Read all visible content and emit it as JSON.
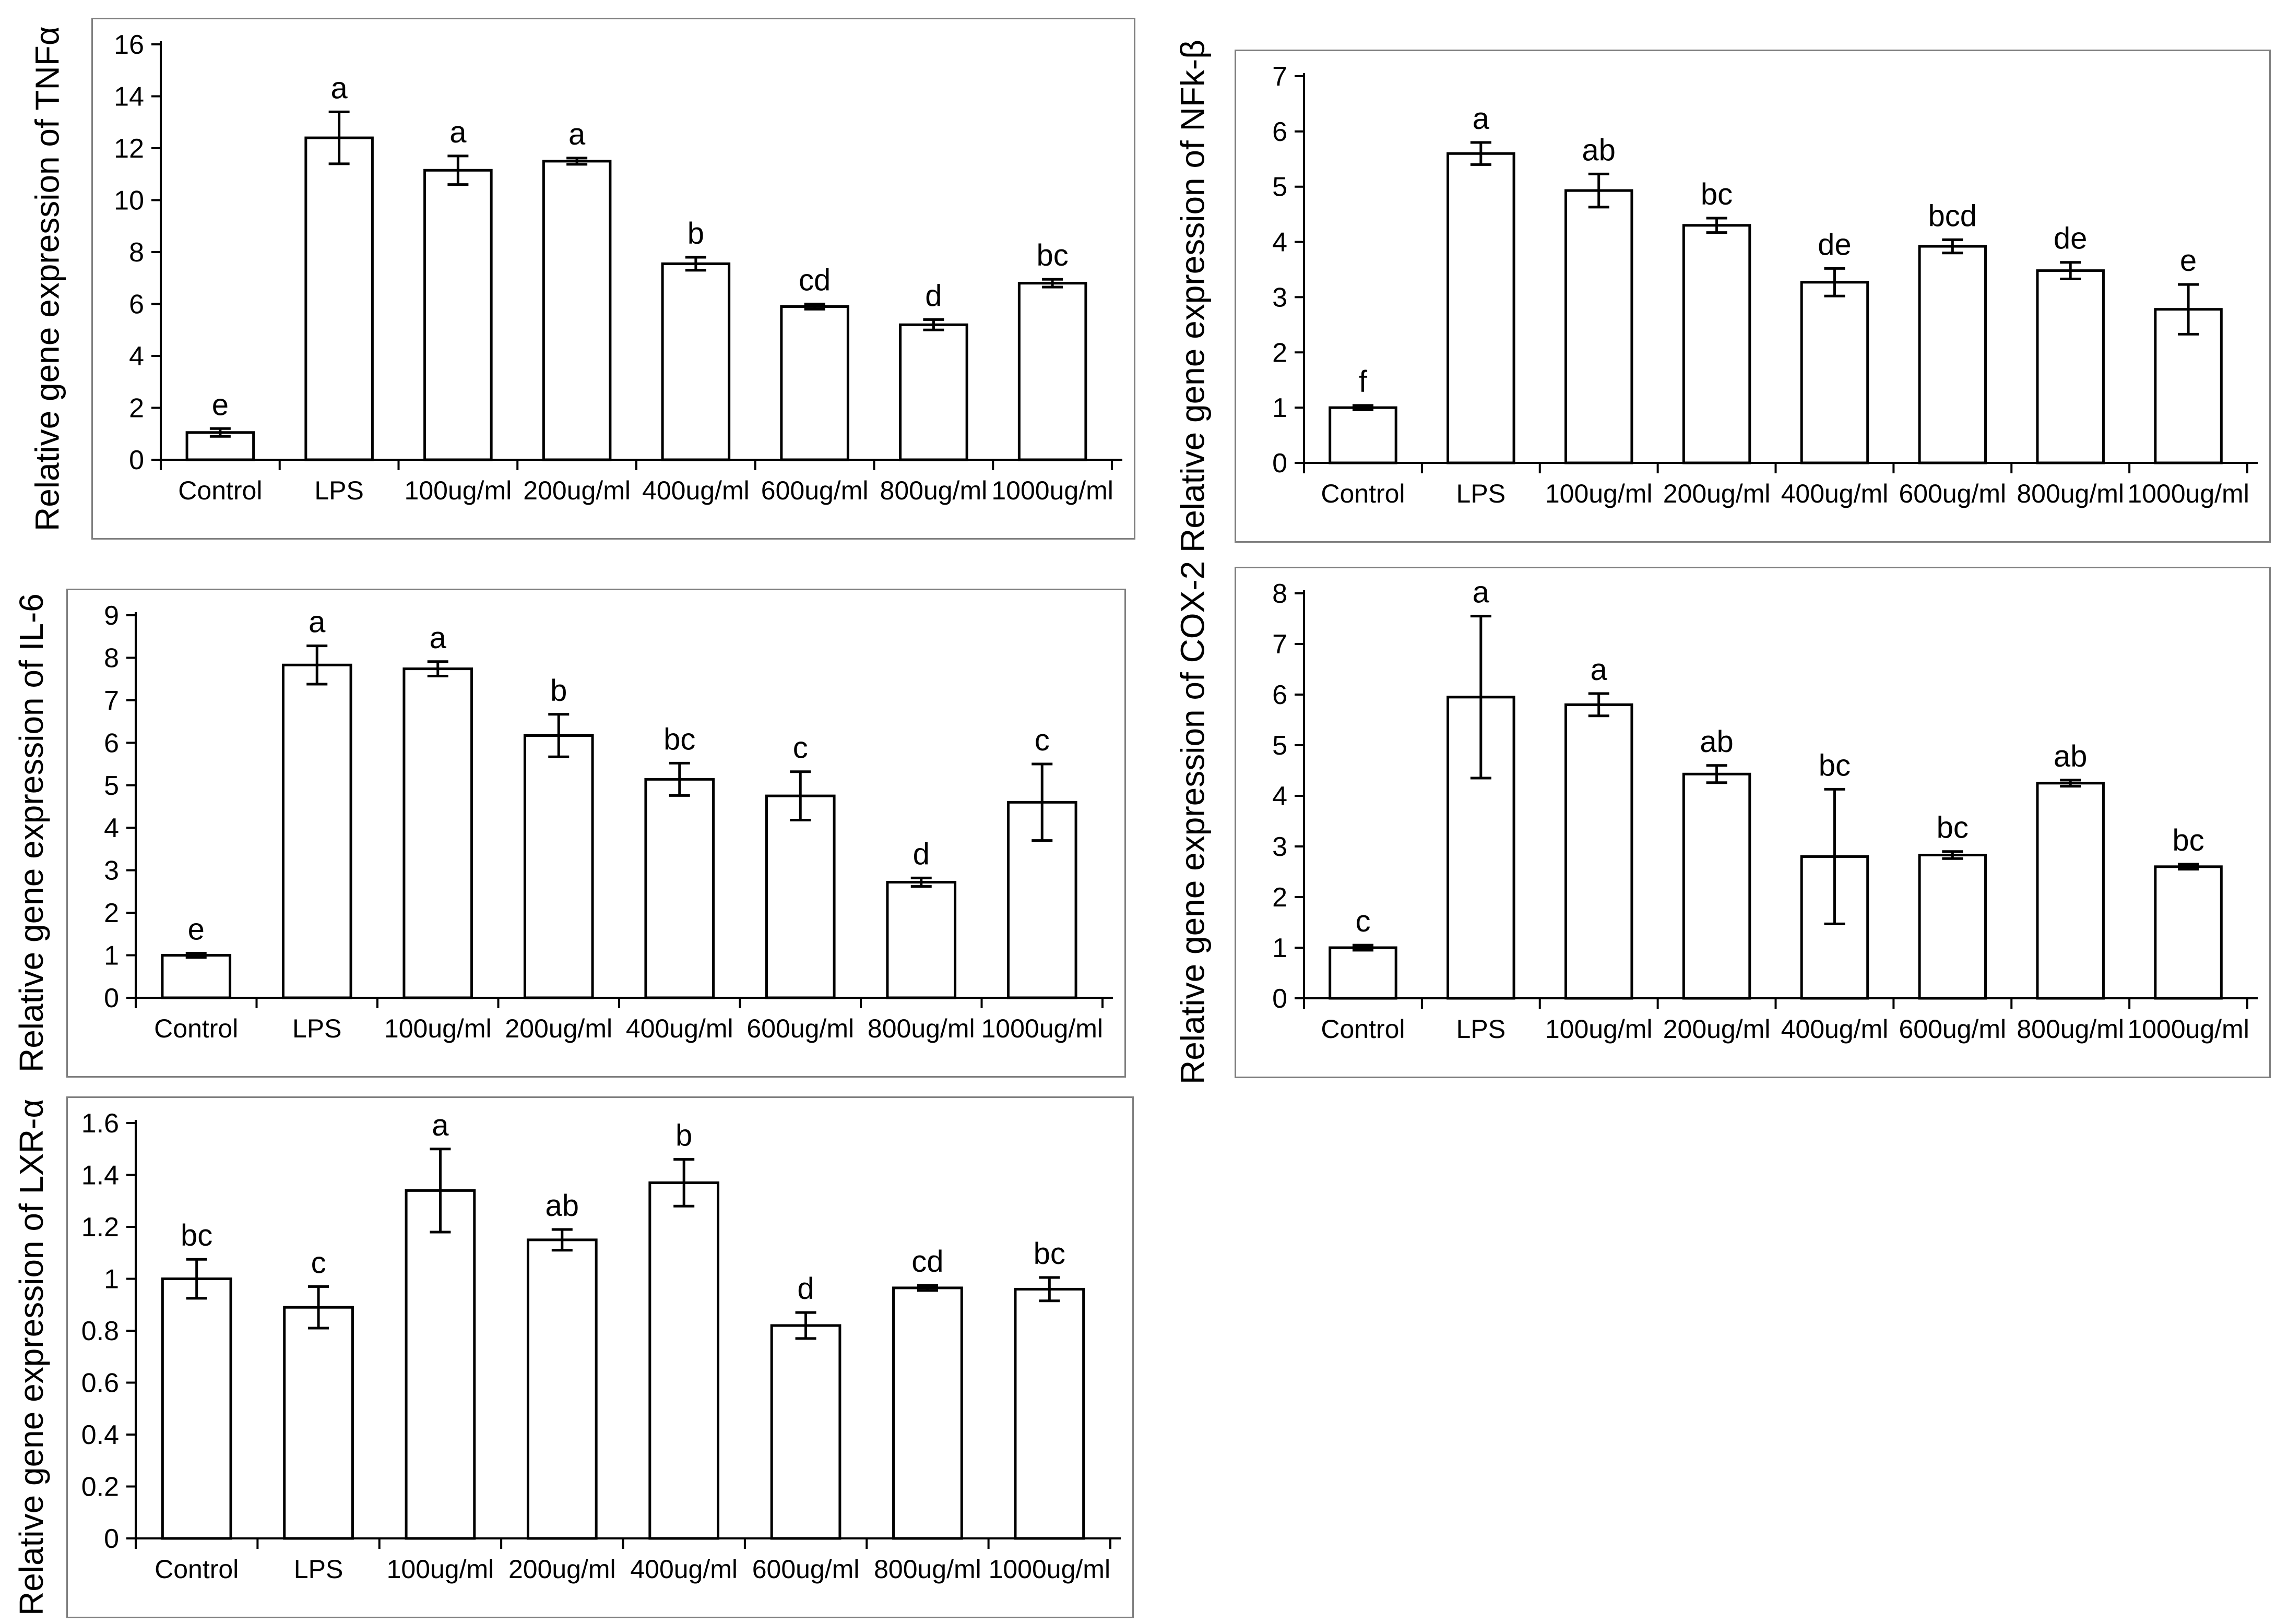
{
  "figure": {
    "description_labels": [
      "Control",
      "LPS",
      "100ug/ml",
      "200ug/ml",
      "400ug/ml",
      "600ug/ml",
      "800ug/ml",
      "1000ug/ml"
    ]
  },
  "chart_data": [
    {
      "id": "tnfa",
      "type": "bar",
      "title": "",
      "ylabel": "Relative gene expression of TNFα",
      "xlabel": "",
      "categories": [
        "Control",
        "LPS",
        "100ug/ml",
        "200ug/ml",
        "400ug/ml",
        "600ug/ml",
        "800ug/ml",
        "1000ug/ml"
      ],
      "values": [
        1.05,
        12.4,
        11.15,
        11.5,
        7.55,
        5.9,
        5.2,
        6.8
      ],
      "errors": [
        0.15,
        1.0,
        0.55,
        0.12,
        0.25,
        0.1,
        0.2,
        0.15
      ],
      "letters": [
        "e",
        "a",
        "a",
        "a",
        "b",
        "cd",
        "d",
        "bc"
      ],
      "ylim": [
        0,
        16
      ],
      "ytick_step": 2,
      "grid": false,
      "legend": "none",
      "bar_fill": "#ffffff",
      "bar_stroke": "#000000"
    },
    {
      "id": "nfkb",
      "type": "bar",
      "title": "",
      "ylabel": "Relative gene expression of NFk-β",
      "xlabel": "",
      "categories": [
        "Control",
        "LPS",
        "100ug/ml",
        "200ug/ml",
        "400ug/ml",
        "600ug/ml",
        "800ug/ml",
        "1000ug/ml"
      ],
      "values": [
        1.0,
        5.6,
        4.93,
        4.3,
        3.27,
        3.92,
        3.48,
        2.78
      ],
      "errors": [
        0.04,
        0.2,
        0.3,
        0.13,
        0.25,
        0.12,
        0.15,
        0.45
      ],
      "letters": [
        "f",
        "a",
        "ab",
        "bc",
        "de",
        "bcd",
        "de",
        "e"
      ],
      "ylim": [
        0,
        7
      ],
      "ytick_step": 1,
      "grid": false,
      "legend": "none",
      "bar_fill": "#ffffff",
      "bar_stroke": "#000000"
    },
    {
      "id": "il6",
      "type": "bar",
      "title": "",
      "ylabel": "Relative gene expression of IL-6",
      "xlabel": "",
      "categories": [
        "Control",
        "LPS",
        "100ug/ml",
        "200ug/ml",
        "400ug/ml",
        "600ug/ml",
        "800ug/ml",
        "1000ug/ml"
      ],
      "values": [
        1.0,
        7.83,
        7.74,
        6.17,
        5.14,
        4.75,
        2.72,
        4.6
      ],
      "errors": [
        0.05,
        0.45,
        0.17,
        0.5,
        0.38,
        0.57,
        0.1,
        0.9
      ],
      "letters": [
        "e",
        "a",
        "a",
        "b",
        "bc",
        "c",
        "d",
        "c"
      ],
      "ylim": [
        0,
        9
      ],
      "ytick_step": 1,
      "grid": false,
      "legend": "none",
      "bar_fill": "#ffffff",
      "bar_stroke": "#000000"
    },
    {
      "id": "cox2",
      "type": "bar",
      "title": "",
      "ylabel": "Relative gene expression of COX-2",
      "xlabel": "",
      "categories": [
        "Control",
        "LPS",
        "100ug/ml",
        "200ug/ml",
        "400ug/ml",
        "600ug/ml",
        "800ug/ml",
        "1000ug/ml"
      ],
      "values": [
        1.0,
        5.95,
        5.8,
        4.43,
        2.8,
        2.83,
        4.25,
        2.6
      ],
      "errors": [
        0.05,
        1.6,
        0.22,
        0.17,
        1.33,
        0.07,
        0.06,
        0.05
      ],
      "letters": [
        "c",
        "a",
        "a",
        "ab",
        "bc",
        "bc",
        "ab",
        "bc"
      ],
      "ylim": [
        0,
        8
      ],
      "ytick_step": 1,
      "grid": false,
      "legend": "none",
      "bar_fill": "#ffffff",
      "bar_stroke": "#000000"
    },
    {
      "id": "lxra",
      "type": "bar",
      "title": "",
      "ylabel": "Relative gene expression of LXR-α",
      "xlabel": "",
      "categories": [
        "Control",
        "LPS",
        "100ug/ml",
        "200ug/ml",
        "400ug/ml",
        "600ug/ml",
        "800ug/ml",
        "1000ug/ml"
      ],
      "values": [
        1.0,
        0.89,
        1.34,
        1.15,
        1.37,
        0.82,
        0.965,
        0.96
      ],
      "errors": [
        0.075,
        0.08,
        0.16,
        0.04,
        0.09,
        0.05,
        0.01,
        0.045
      ],
      "letters": [
        "bc",
        "c",
        "a",
        "ab",
        "b",
        "d",
        "cd",
        "bc"
      ],
      "ylim": [
        0,
        1.6
      ],
      "ytick_step": 0.2,
      "grid": false,
      "legend": "none",
      "bar_fill": "#ffffff",
      "bar_stroke": "#000000"
    }
  ],
  "colors": {
    "axis": "#000000",
    "panel_border": "#7f7f7f",
    "background": "#ffffff"
  }
}
